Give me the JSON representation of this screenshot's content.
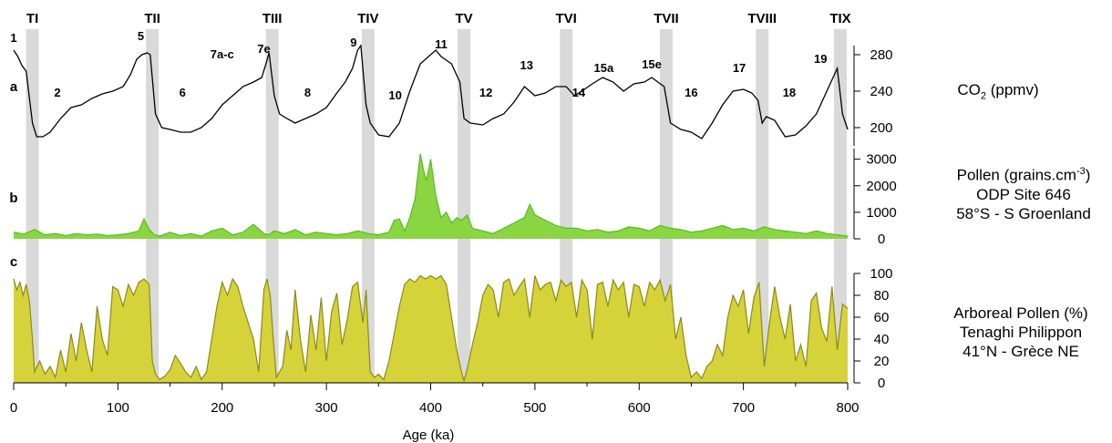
{
  "chart_data": {
    "type": "line",
    "xlabel": "Age (ka)",
    "xlim": [
      0,
      800
    ],
    "x_ticks": [
      "0",
      "100",
      "200",
      "300",
      "400",
      "500",
      "600",
      "700",
      "800"
    ],
    "terminations": [
      {
        "name": "TI",
        "age": 18
      },
      {
        "name": "TII",
        "age": 133
      },
      {
        "name": "TIII",
        "age": 248
      },
      {
        "name": "TIV",
        "age": 340
      },
      {
        "name": "TV",
        "age": 432
      },
      {
        "name": "TVI",
        "age": 530
      },
      {
        "name": "TVII",
        "age": 626
      },
      {
        "name": "TVIII",
        "age": 718
      },
      {
        "name": "TIX",
        "age": 793
      }
    ],
    "panels": [
      {
        "id": "a",
        "label": "a",
        "type": "line",
        "color": "#000000",
        "ylabel_parts": [
          "CO",
          "2",
          " (ppmv)"
        ],
        "ylim": [
          180,
          290
        ],
        "y_ticks": [
          200,
          240,
          280
        ],
        "stages": [
          {
            "label": "1",
            "age": 0,
            "value": 288
          },
          {
            "label": "2",
            "age": 42,
            "value": 228
          },
          {
            "label": "5",
            "age": 122,
            "value": 290
          },
          {
            "label": "6",
            "age": 162,
            "value": 228
          },
          {
            "label": "7a-c",
            "age": 200,
            "value": 270
          },
          {
            "label": "7e",
            "age": 240,
            "value": 276
          },
          {
            "label": "8",
            "age": 282,
            "value": 228
          },
          {
            "label": "9",
            "age": 326,
            "value": 283
          },
          {
            "label": "10",
            "age": 366,
            "value": 225
          },
          {
            "label": "11",
            "age": 410,
            "value": 281
          },
          {
            "label": "12",
            "age": 453,
            "value": 228
          },
          {
            "label": "13",
            "age": 492,
            "value": 258
          },
          {
            "label": "14",
            "age": 542,
            "value": 228
          },
          {
            "label": "15a",
            "age": 566,
            "value": 255
          },
          {
            "label": "15e",
            "age": 612,
            "value": 259
          },
          {
            "label": "16",
            "age": 650,
            "value": 228
          },
          {
            "label": "17",
            "age": 696,
            "value": 255
          },
          {
            "label": "18",
            "age": 744,
            "value": 228
          },
          {
            "label": "19",
            "age": 774,
            "value": 265
          }
        ],
        "series": [
          {
            "x": [
              0,
              4,
              8,
              12,
              18,
              22,
              28,
              35,
              45,
              55,
              65,
              75,
              85,
              95,
              105,
              112,
              118,
              123,
              128,
              131,
              136,
              142,
              150,
              160,
              170,
              180,
              190,
              200,
              210,
              220,
              230,
              238,
              242,
              245,
              250,
              255,
              262,
              270,
              280,
              290,
              300,
              310,
              318,
              325,
              330,
              333,
              338,
              342,
              350,
              360,
              370,
              380,
              390,
              400,
              405,
              410,
              420,
              428,
              432,
              438,
              450,
              460,
              470,
              480,
              490,
              500,
              510,
              520,
              530,
              538,
              545,
              555,
              565,
              575,
              585,
              595,
              605,
              612,
              618,
              624,
              630,
              640,
              650,
              660,
              670,
              680,
              690,
              700,
              708,
              714,
              718,
              722,
              730,
              740,
              750,
              760,
              770,
              780,
              786,
              790,
              795,
              800
            ],
            "y": [
              285,
              278,
              268,
              262,
              205,
              190,
              190,
              195,
              210,
              222,
              225,
              232,
              237,
              240,
              245,
              258,
              275,
              280,
              282,
              280,
              215,
              200,
              198,
              195,
              195,
              200,
              210,
              225,
              235,
              245,
              250,
              255,
              270,
              282,
              235,
              215,
              210,
              205,
              210,
              215,
              222,
              238,
              250,
              265,
              285,
              290,
              225,
              205,
              192,
              190,
              205,
              240,
              270,
              280,
              285,
              278,
              270,
              250,
              210,
              205,
              203,
              210,
              215,
              228,
              245,
              235,
              238,
              245,
              245,
              235,
              240,
              248,
              255,
              250,
              240,
              248,
              250,
              255,
              250,
              245,
              205,
              198,
              195,
              188,
              205,
              225,
              240,
              242,
              238,
              230,
              205,
              212,
              208,
              190,
              192,
              202,
              215,
              240,
              255,
              265,
              215,
              198
            ]
          }
        ]
      },
      {
        "id": "b",
        "label": "b",
        "type": "area",
        "color": "#8ad542",
        "line_color": "#5db82c",
        "ylabel_parts": [
          "Pollen (grains.cm",
          "-3",
          ")"
        ],
        "ylabel_lines": [
          "ODP Site 646",
          "58°S - S Groenland"
        ],
        "ylim": [
          0,
          3400
        ],
        "y_ticks": [
          0,
          1000,
          2000,
          3000
        ],
        "series": [
          {
            "x": [
              0,
              10,
              20,
              30,
              40,
              50,
              60,
              70,
              80,
              90,
              100,
              110,
              120,
              125,
              130,
              135,
              140,
              150,
              160,
              170,
              180,
              190,
              200,
              210,
              220,
              230,
              240,
              245,
              250,
              260,
              270,
              280,
              290,
              300,
              310,
              320,
              330,
              340,
              350,
              360,
              365,
              370,
              375,
              380,
              385,
              390,
              393,
              396,
              400,
              405,
              410,
              415,
              420,
              425,
              430,
              435,
              440,
              450,
              460,
              470,
              480,
              490,
              495,
              500,
              510,
              520,
              530,
              540,
              550,
              560,
              570,
              580,
              590,
              600,
              610,
              620,
              630,
              640,
              650,
              660,
              670,
              680,
              690,
              700,
              710,
              720,
              730,
              740,
              750,
              760,
              770,
              780,
              790,
              800
            ],
            "y": [
              250,
              180,
              350,
              150,
              200,
              120,
              200,
              150,
              180,
              120,
              150,
              200,
              300,
              750,
              350,
              150,
              100,
              250,
              120,
              200,
              100,
              300,
              400,
              150,
              250,
              550,
              200,
              150,
              300,
              200,
              350,
              150,
              250,
              200,
              150,
              200,
              300,
              200,
              150,
              250,
              700,
              750,
              300,
              800,
              1500,
              3200,
              2600,
              2200,
              3000,
              1600,
              800,
              1000,
              600,
              800,
              700,
              900,
              400,
              300,
              200,
              400,
              600,
              800,
              1300,
              900,
              700,
              500,
              400,
              400,
              300,
              350,
              250,
              300,
              450,
              400,
              300,
              500,
              400,
              350,
              250,
              300,
              400,
              500,
              350,
              400,
              300,
              450,
              350,
              300,
              250,
              200,
              300,
              200,
              150,
              100
            ]
          }
        ]
      },
      {
        "id": "c",
        "label": "c",
        "type": "area",
        "color": "#d6d23a",
        "line_color": "#8b8a1e",
        "ylabel_parts": [
          "Arboreal Pollen (%)"
        ],
        "ylabel_lines": [
          "Tenaghi Philippon",
          "41°N - Grèce NE"
        ],
        "ylim": [
          0,
          100
        ],
        "y_ticks": [
          0,
          20,
          40,
          60,
          80,
          100
        ],
        "series": [
          {
            "x": [
              0,
              3,
              6,
              9,
              12,
              15,
              18,
              20,
              25,
              30,
              35,
              40,
              45,
              50,
              55,
              60,
              65,
              70,
              75,
              80,
              85,
              90,
              95,
              100,
              105,
              110,
              115,
              120,
              125,
              130,
              133,
              136,
              140,
              145,
              150,
              155,
              160,
              165,
              170,
              175,
              180,
              185,
              190,
              195,
              200,
              205,
              210,
              215,
              220,
              225,
              230,
              235,
              240,
              243,
              246,
              249,
              252,
              258,
              262,
              266,
              270,
              275,
              280,
              285,
              290,
              295,
              300,
              305,
              310,
              315,
              320,
              325,
              330,
              335,
              338,
              342,
              346,
              350,
              355,
              360,
              365,
              370,
              375,
              380,
              385,
              390,
              395,
              400,
              405,
              410,
              415,
              420,
              425,
              430,
              432,
              435,
              440,
              445,
              450,
              455,
              460,
              465,
              470,
              475,
              480,
              485,
              490,
              495,
              500,
              505,
              510,
              515,
              520,
              525,
              530,
              535,
              540,
              545,
              550,
              555,
              560,
              565,
              570,
              575,
              580,
              585,
              590,
              595,
              600,
              605,
              610,
              615,
              620,
              625,
              630,
              635,
              640,
              645,
              650,
              655,
              660,
              665,
              670,
              675,
              680,
              685,
              690,
              695,
              700,
              705,
              710,
              715,
              720,
              725,
              730,
              735,
              740,
              745,
              750,
              755,
              760,
              765,
              770,
              775,
              780,
              785,
              790,
              795,
              800
            ],
            "y": [
              95,
              85,
              92,
              80,
              90,
              75,
              40,
              10,
              20,
              8,
              15,
              5,
              30,
              10,
              45,
              20,
              55,
              30,
              10,
              70,
              40,
              25,
              88,
              85,
              70,
              90,
              80,
              92,
              95,
              90,
              20,
              8,
              3,
              6,
              12,
              25,
              18,
              10,
              5,
              15,
              3,
              10,
              40,
              70,
              92,
              80,
              95,
              88,
              70,
              55,
              40,
              10,
              85,
              95,
              80,
              40,
              5,
              15,
              48,
              30,
              85,
              40,
              10,
              62,
              30,
              78,
              20,
              65,
              82,
              35,
              58,
              88,
              92,
              55,
              85,
              10,
              5,
              8,
              3,
              20,
              45,
              70,
              90,
              95,
              92,
              98,
              95,
              98,
              95,
              98,
              90,
              60,
              30,
              8,
              2,
              12,
              35,
              55,
              80,
              90,
              85,
              60,
              92,
              95,
              80,
              88,
              95,
              60,
              98,
              85,
              90,
              92,
              75,
              94,
              88,
              92,
              60,
              94,
              85,
              40,
              90,
              92,
              70,
              94,
              85,
              92,
              60,
              90,
              88,
              70,
              92,
              85,
              94,
              75,
              90,
              40,
              60,
              25,
              5,
              10,
              4,
              15,
              20,
              35,
              25,
              60,
              80,
              70,
              85,
              45,
              78,
              92,
              15,
              55,
              88,
              60,
              40,
              72,
              20,
              35,
              15,
              75,
              82,
              50,
              38,
              88,
              30,
              72,
              68
            ]
          }
        ]
      }
    ]
  }
}
